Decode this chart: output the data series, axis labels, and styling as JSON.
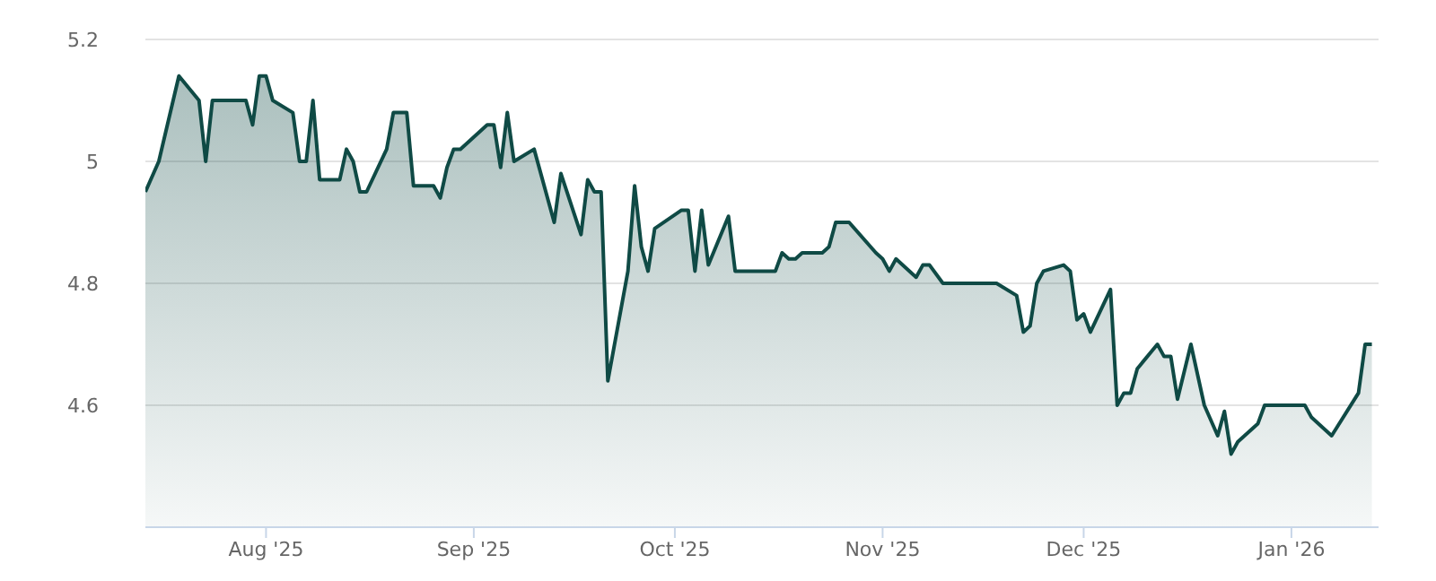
{
  "chart_data": {
    "type": "area",
    "x": [
      "2025-07-14",
      "2025-07-16",
      "2025-07-19",
      "2025-07-22",
      "2025-07-23",
      "2025-07-24",
      "2025-07-29",
      "2025-07-30",
      "2025-07-31",
      "2025-08-01",
      "2025-08-02",
      "2025-08-05",
      "2025-08-06",
      "2025-08-07",
      "2025-08-08",
      "2025-08-09",
      "2025-08-12",
      "2025-08-13",
      "2025-08-14",
      "2025-08-15",
      "2025-08-16",
      "2025-08-19",
      "2025-08-20",
      "2025-08-22",
      "2025-08-23",
      "2025-08-26",
      "2025-08-27",
      "2025-08-28",
      "2025-08-29",
      "2025-08-30",
      "2025-09-03",
      "2025-09-04",
      "2025-09-05",
      "2025-09-06",
      "2025-09-07",
      "2025-09-10",
      "2025-09-13",
      "2025-09-14",
      "2025-09-17",
      "2025-09-18",
      "2025-09-19",
      "2025-09-20",
      "2025-09-21",
      "2025-09-24",
      "2025-09-25",
      "2025-09-26",
      "2025-09-27",
      "2025-09-28",
      "2025-10-02",
      "2025-10-03",
      "2025-10-04",
      "2025-10-05",
      "2025-10-06",
      "2025-10-09",
      "2025-10-10",
      "2025-10-16",
      "2025-10-17",
      "2025-10-18",
      "2025-10-19",
      "2025-10-20",
      "2025-10-23",
      "2025-10-24",
      "2025-10-25",
      "2025-10-27",
      "2025-10-31",
      "2025-11-01",
      "2025-11-02",
      "2025-11-03",
      "2025-11-06",
      "2025-11-07",
      "2025-11-08",
      "2025-11-10",
      "2025-11-18",
      "2025-11-21",
      "2025-11-22",
      "2025-11-23",
      "2025-11-24",
      "2025-11-25",
      "2025-11-28",
      "2025-11-29",
      "2025-11-30",
      "2025-12-01",
      "2025-12-02",
      "2025-12-05",
      "2025-12-06",
      "2025-12-07",
      "2025-12-08",
      "2025-12-09",
      "2025-12-12",
      "2025-12-13",
      "2025-12-14",
      "2025-12-15",
      "2025-12-17",
      "2025-12-19",
      "2025-12-21",
      "2025-12-22",
      "2025-12-23",
      "2025-12-24",
      "2025-12-27",
      "2025-12-28",
      "2026-01-03",
      "2026-01-04",
      "2026-01-07",
      "2026-01-11",
      "2026-01-12",
      "2026-01-13"
    ],
    "series": [
      {
        "color": "#0f4a45",
        "values": [
          4.95,
          5.0,
          5.14,
          5.1,
          5.0,
          5.1,
          5.1,
          5.06,
          5.14,
          5.14,
          5.1,
          5.08,
          5.0,
          5.0,
          5.1,
          4.97,
          4.97,
          5.02,
          5.0,
          4.95,
          4.95,
          5.02,
          5.08,
          5.08,
          4.96,
          4.96,
          4.94,
          4.99,
          5.02,
          5.02,
          5.06,
          5.06,
          4.99,
          5.08,
          5.0,
          5.02,
          4.9,
          4.98,
          4.88,
          4.97,
          4.95,
          4.95,
          4.64,
          4.82,
          4.96,
          4.86,
          4.82,
          4.89,
          4.92,
          4.92,
          4.82,
          4.92,
          4.83,
          4.91,
          4.82,
          4.82,
          4.85,
          4.84,
          4.84,
          4.85,
          4.85,
          4.86,
          4.9,
          4.9,
          4.85,
          4.84,
          4.82,
          4.84,
          4.81,
          4.83,
          4.83,
          4.8,
          4.8,
          4.78,
          4.72,
          4.73,
          4.8,
          4.82,
          4.83,
          4.82,
          4.74,
          4.75,
          4.72,
          4.79,
          4.6,
          4.62,
          4.62,
          4.66,
          4.7,
          4.68,
          4.68,
          4.61,
          4.7,
          4.6,
          4.55,
          4.59,
          4.52,
          4.54,
          4.57,
          4.6,
          4.6,
          4.58,
          4.55,
          4.62,
          4.7,
          4.7
        ]
      }
    ],
    "xlim": [
      "2025-07-14",
      "2026-01-14"
    ],
    "xticks": [
      {
        "value": "2025-08-01",
        "label": "Aug '25"
      },
      {
        "value": "2025-09-01",
        "label": "Sep '25"
      },
      {
        "value": "2025-10-01",
        "label": "Oct '25"
      },
      {
        "value": "2025-11-01",
        "label": "Nov '25"
      },
      {
        "value": "2025-12-01",
        "label": "Dec '25"
      },
      {
        "value": "2026-01-01",
        "label": "Jan '26"
      }
    ],
    "ylim": [
      4.4,
      5.2
    ],
    "yticks": [
      4.6,
      4.8,
      5,
      5.2
    ],
    "grid": "y",
    "legend": false,
    "marker": "none",
    "line_style": "solid"
  }
}
